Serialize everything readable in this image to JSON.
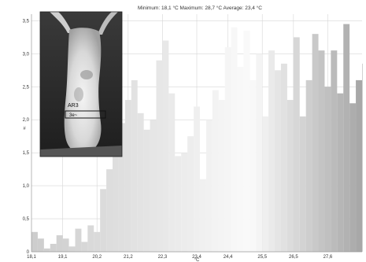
{
  "chart_data": {
    "type": "bar",
    "title": "Minimum: 18,1 °C Maximum: 28,7 °C Average: 23,4 °C",
    "xlabel": "°C",
    "ylabel": "#",
    "xlim": [
      18.1,
      28.7
    ],
    "ylim": [
      0,
      3.6
    ],
    "x_ticks": [
      "18,1",
      "19,1",
      "20,2",
      "21,2",
      "22,3",
      "23,4",
      "24,4",
      "25,5",
      "26,5",
      "27,6"
    ],
    "y_ticks": [
      "0",
      "0,5",
      "1,0",
      "1,5",
      "2,0",
      "2,5",
      "3,0",
      "3,5"
    ],
    "grid": true,
    "bin_width": 0.2,
    "values": [
      0.3,
      0.2,
      0.05,
      0.12,
      0.25,
      0.2,
      0.08,
      0.35,
      0.15,
      0.4,
      0.3,
      0.95,
      1.25,
      1.5,
      1.95,
      2.3,
      2.6,
      2.1,
      1.85,
      2.0,
      2.9,
      3.2,
      2.4,
      1.45,
      1.5,
      1.75,
      2.2,
      1.1,
      2.0,
      2.45,
      2.3,
      3.1,
      3.4,
      2.8,
      3.35,
      2.6,
      3.0,
      2.05,
      3.05,
      2.75,
      2.85,
      2.3,
      3.25,
      2.05,
      2.6,
      3.3,
      3.05,
      2.5,
      3.05,
      2.4,
      3.45,
      2.25,
      2.6,
      2.85,
      2.6,
      2.1,
      2.8,
      2.75,
      2.05,
      1.8,
      1.65,
      1.35,
      0.95,
      0.65,
      0.5,
      0.45,
      0.1,
      0.2,
      0.4,
      0.2,
      0.4,
      0.2,
      0.4,
      0.2,
      0.4,
      0.25,
      0.4,
      0.2
    ]
  },
  "inset": {
    "marker_label": "AR3",
    "box_label": "3e~"
  }
}
